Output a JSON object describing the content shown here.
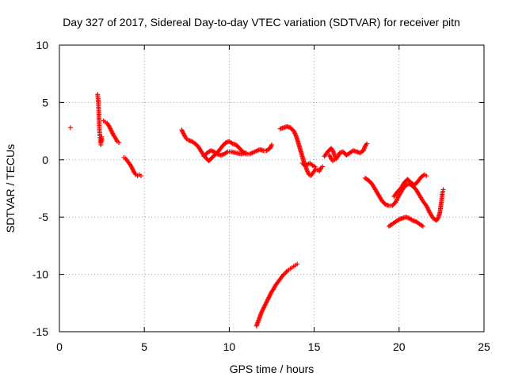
{
  "chart_data": {
    "type": "scatter",
    "title": "Day 327 of 2017, Sidereal Day-to-day VTEC variation (SDTVAR) for receiver pitn",
    "xlabel": "GPS time / hours",
    "ylabel": "SDTVAR / TECUs",
    "xlim": [
      0,
      25
    ],
    "ylim": [
      -15,
      10
    ],
    "xticks": [
      0,
      5,
      10,
      15,
      20,
      25
    ],
    "yticks": [
      -15,
      -10,
      -5,
      0,
      5,
      10
    ],
    "grid": true,
    "marker": "+",
    "color": "#ff0000",
    "segments": [
      {
        "name": "isolated",
        "points": [
          [
            0.65,
            2.8
          ]
        ]
      },
      {
        "name": "spike-2.3h",
        "points": [
          [
            2.25,
            5.7
          ],
          [
            2.28,
            5.2
          ],
          [
            2.3,
            4.7
          ],
          [
            2.32,
            4.2
          ],
          [
            2.33,
            3.6
          ],
          [
            2.35,
            3.0
          ],
          [
            2.36,
            2.5
          ],
          [
            2.38,
            2.1
          ],
          [
            2.4,
            1.8
          ],
          [
            2.42,
            1.5
          ],
          [
            2.44,
            1.3
          ],
          [
            2.46,
            1.6
          ],
          [
            2.48,
            2.0
          ],
          [
            2.5,
            1.7
          ]
        ]
      },
      {
        "name": "arc-2.6h",
        "points": [
          [
            2.6,
            3.4
          ],
          [
            2.7,
            3.3
          ],
          [
            2.8,
            3.2
          ],
          [
            2.9,
            3.0
          ],
          [
            3.0,
            2.7
          ],
          [
            3.1,
            2.4
          ],
          [
            3.2,
            2.1
          ],
          [
            3.3,
            1.9
          ],
          [
            3.4,
            1.6
          ],
          [
            3.5,
            1.5
          ]
        ]
      },
      {
        "name": "arc-3.8h",
        "points": [
          [
            3.8,
            0.2
          ],
          [
            3.9,
            0.1
          ],
          [
            4.0,
            -0.1
          ],
          [
            4.1,
            -0.3
          ],
          [
            4.2,
            -0.5
          ],
          [
            4.3,
            -0.8
          ],
          [
            4.4,
            -1.1
          ],
          [
            4.5,
            -1.3
          ],
          [
            4.6,
            -1.4
          ],
          [
            4.7,
            -1.3
          ],
          [
            4.8,
            -1.4
          ]
        ]
      },
      {
        "name": "arc-7.2h",
        "points": [
          [
            7.2,
            2.6
          ],
          [
            7.3,
            2.3
          ],
          [
            7.4,
            2.0
          ],
          [
            7.5,
            1.8
          ],
          [
            7.6,
            1.7
          ],
          [
            7.8,
            1.6
          ],
          [
            8.0,
            1.4
          ],
          [
            8.2,
            1.1
          ],
          [
            8.4,
            0.6
          ],
          [
            8.6,
            0.2
          ],
          [
            8.8,
            -0.1
          ],
          [
            9.0,
            0.2
          ],
          [
            9.2,
            0.5
          ],
          [
            9.4,
            0.8
          ],
          [
            9.6,
            1.2
          ],
          [
            9.8,
            1.5
          ],
          [
            10.0,
            1.6
          ],
          [
            10.2,
            1.4
          ],
          [
            10.4,
            1.3
          ],
          [
            10.6,
            1.0
          ],
          [
            10.8,
            0.7
          ],
          [
            11.0,
            0.5
          ],
          [
            11.2,
            0.5
          ],
          [
            11.5,
            0.7
          ],
          [
            11.8,
            0.9
          ],
          [
            12.0,
            0.8
          ],
          [
            12.2,
            0.8
          ],
          [
            12.4,
            1.0
          ],
          [
            12.5,
            1.3
          ]
        ]
      },
      {
        "name": "arc-8.5h-lower",
        "points": [
          [
            8.5,
            0.3
          ],
          [
            8.7,
            0.6
          ],
          [
            8.9,
            0.8
          ],
          [
            9.1,
            0.7
          ],
          [
            9.3,
            0.5
          ],
          [
            9.5,
            0.4
          ],
          [
            9.7,
            0.5
          ],
          [
            9.9,
            0.7
          ],
          [
            10.1,
            0.7
          ],
          [
            10.4,
            0.6
          ],
          [
            10.7,
            0.5
          ],
          [
            11.0,
            0.6
          ]
        ]
      },
      {
        "name": "arc-13.0h",
        "points": [
          [
            13.0,
            2.7
          ],
          [
            13.2,
            2.8
          ],
          [
            13.4,
            2.9
          ],
          [
            13.6,
            2.8
          ],
          [
            13.8,
            2.5
          ],
          [
            13.9,
            2.2
          ],
          [
            14.0,
            1.8
          ],
          [
            14.1,
            1.3
          ],
          [
            14.2,
            0.8
          ],
          [
            14.3,
            0.3
          ],
          [
            14.4,
            -0.2
          ],
          [
            14.5,
            -0.6
          ],
          [
            14.6,
            -1.0
          ],
          [
            14.7,
            -1.3
          ],
          [
            14.8,
            -1.4
          ],
          [
            14.9,
            -1.2
          ],
          [
            15.0,
            -1.0
          ],
          [
            15.1,
            -0.8
          ],
          [
            15.2,
            -0.9
          ],
          [
            15.3,
            -1.0
          ],
          [
            15.4,
            -0.7
          ],
          [
            15.5,
            -0.6
          ]
        ]
      },
      {
        "name": "arc-14.3h-upper",
        "points": [
          [
            14.3,
            -0.3
          ],
          [
            14.45,
            -0.5
          ],
          [
            14.6,
            -0.4
          ],
          [
            14.75,
            -0.3
          ],
          [
            14.9,
            -0.5
          ],
          [
            15.05,
            -0.6
          ]
        ]
      },
      {
        "name": "arc-15.5h",
        "points": [
          [
            15.6,
            0.3
          ],
          [
            15.8,
            0.7
          ],
          [
            16.0,
            1.0
          ],
          [
            16.1,
            0.8
          ],
          [
            16.2,
            0.4
          ],
          [
            16.3,
            0.1
          ],
          [
            16.4,
            0.3
          ],
          [
            16.5,
            0.6
          ],
          [
            16.7,
            0.7
          ],
          [
            16.9,
            0.4
          ],
          [
            17.1,
            0.6
          ],
          [
            17.3,
            0.8
          ],
          [
            17.5,
            0.7
          ],
          [
            17.7,
            0.6
          ],
          [
            17.9,
            0.8
          ],
          [
            18.0,
            1.2
          ],
          [
            18.1,
            1.4
          ]
        ]
      },
      {
        "name": "arc-15.9h-lower",
        "points": [
          [
            15.9,
            0.4
          ],
          [
            16.0,
            0.1
          ],
          [
            16.1,
            -0.1
          ],
          [
            16.2,
            0.0
          ],
          [
            16.35,
            0.2
          ]
        ]
      },
      {
        "name": "arc-18.0h",
        "points": [
          [
            18.0,
            -1.6
          ],
          [
            18.2,
            -1.8
          ],
          [
            18.4,
            -2.1
          ],
          [
            18.6,
            -2.6
          ],
          [
            18.8,
            -3.1
          ],
          [
            19.0,
            -3.6
          ],
          [
            19.2,
            -3.9
          ],
          [
            19.4,
            -4.0
          ],
          [
            19.6,
            -4.0
          ],
          [
            19.8,
            -3.7
          ],
          [
            20.0,
            -3.1
          ],
          [
            20.2,
            -2.6
          ],
          [
            20.4,
            -2.2
          ],
          [
            20.6,
            -2.1
          ],
          [
            20.8,
            -2.3
          ],
          [
            21.0,
            -2.6
          ],
          [
            21.2,
            -3.1
          ],
          [
            21.4,
            -3.6
          ],
          [
            21.6,
            -4.0
          ],
          [
            21.8,
            -4.6
          ],
          [
            22.0,
            -5.1
          ],
          [
            22.2,
            -5.3
          ],
          [
            22.3,
            -5.1
          ],
          [
            22.4,
            -4.6
          ],
          [
            22.5,
            -3.6
          ],
          [
            22.55,
            -2.9
          ],
          [
            22.6,
            -2.6
          ]
        ]
      },
      {
        "name": "arc-19.7h-upper",
        "points": [
          [
            19.7,
            -3.2
          ],
          [
            19.9,
            -2.8
          ],
          [
            20.1,
            -2.5
          ],
          [
            20.3,
            -2.0
          ],
          [
            20.5,
            -1.7
          ],
          [
            20.7,
            -2.0
          ],
          [
            20.9,
            -2.2
          ],
          [
            21.1,
            -1.9
          ],
          [
            21.3,
            -1.5
          ],
          [
            21.5,
            -1.3
          ],
          [
            21.6,
            -1.4
          ]
        ]
      },
      {
        "name": "arc-19.4h-lower",
        "points": [
          [
            19.4,
            -5.8
          ],
          [
            19.6,
            -5.6
          ],
          [
            19.8,
            -5.4
          ],
          [
            20.0,
            -5.2
          ],
          [
            20.2,
            -5.1
          ],
          [
            20.4,
            -5.0
          ],
          [
            20.6,
            -5.1
          ],
          [
            20.8,
            -5.3
          ],
          [
            21.0,
            -5.4
          ],
          [
            21.2,
            -5.6
          ],
          [
            21.4,
            -5.8
          ]
        ]
      },
      {
        "name": "arc-11.7h-descent",
        "points": [
          [
            11.6,
            -14.5
          ],
          [
            11.7,
            -14.1
          ],
          [
            11.8,
            -13.7
          ],
          [
            11.9,
            -13.3
          ],
          [
            12.0,
            -13.0
          ],
          [
            12.1,
            -12.7
          ],
          [
            12.2,
            -12.4
          ],
          [
            12.3,
            -12.1
          ],
          [
            12.4,
            -11.8
          ],
          [
            12.5,
            -11.5
          ],
          [
            12.6,
            -11.3
          ],
          [
            12.7,
            -11.0
          ],
          [
            12.8,
            -10.8
          ],
          [
            12.9,
            -10.6
          ],
          [
            13.0,
            -10.4
          ],
          [
            13.1,
            -10.2
          ],
          [
            13.2,
            -10.0
          ],
          [
            13.3,
            -9.9
          ],
          [
            13.4,
            -9.7
          ],
          [
            13.5,
            -9.6
          ],
          [
            13.6,
            -9.5
          ],
          [
            13.7,
            -9.4
          ],
          [
            13.8,
            -9.3
          ],
          [
            13.9,
            -9.2
          ],
          [
            14.0,
            -9.1
          ]
        ]
      }
    ]
  }
}
